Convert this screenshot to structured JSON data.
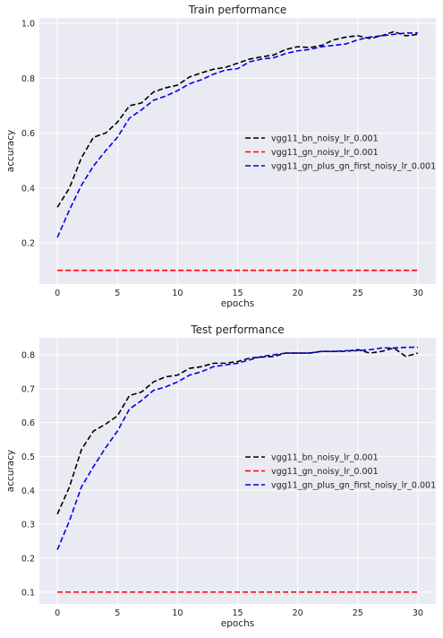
{
  "chart_data": [
    {
      "type": "line",
      "title": "Train performance",
      "xlabel": "epochs",
      "ylabel": "accuracy",
      "xlim": [
        -1.5,
        31.5
      ],
      "ylim": [
        0.05,
        1.02
      ],
      "xticks": [
        0,
        5,
        10,
        15,
        20,
        25,
        30
      ],
      "yticks": [
        0.2,
        0.4,
        0.6,
        0.8,
        1.0
      ],
      "ytick_labels": [
        "0.2",
        "0.4",
        "0.6",
        "0.8",
        "1.0"
      ],
      "grid": true,
      "legend": "center-right",
      "x": [
        0,
        1,
        2,
        3,
        4,
        5,
        6,
        7,
        8,
        9,
        10,
        11,
        12,
        13,
        14,
        15,
        16,
        17,
        18,
        19,
        20,
        21,
        22,
        23,
        24,
        25,
        26,
        27,
        28,
        29,
        30
      ],
      "series": [
        {
          "name": "vgg11_bn_noisy_lr_0.001",
          "color": "#000000",
          "values": [
            0.33,
            0.4,
            0.51,
            0.585,
            0.6,
            0.64,
            0.7,
            0.71,
            0.75,
            0.765,
            0.775,
            0.805,
            0.82,
            0.833,
            0.84,
            0.855,
            0.87,
            0.878,
            0.885,
            0.905,
            0.915,
            0.912,
            0.92,
            0.94,
            0.95,
            0.955,
            0.945,
            0.955,
            0.97,
            0.955,
            0.96
          ]
        },
        {
          "name": "vgg11_gn_noisy_lr_0.001",
          "color": "#ff0000",
          "values": [
            0.1,
            0.1,
            0.1,
            0.1,
            0.1,
            0.1,
            0.1,
            0.1,
            0.1,
            0.1,
            0.1,
            0.1,
            0.1,
            0.1,
            0.1,
            0.1,
            0.1,
            0.1,
            0.1,
            0.1,
            0.1,
            0.1,
            0.1,
            0.1,
            0.1,
            0.1,
            0.1,
            0.1,
            0.1,
            0.1,
            0.1
          ]
        },
        {
          "name": "vgg11_gn_plus_gn_first_noisy_lr_0.001",
          "color": "#0000ee",
          "values": [
            0.22,
            0.32,
            0.41,
            0.48,
            0.535,
            0.585,
            0.655,
            0.685,
            0.72,
            0.735,
            0.755,
            0.78,
            0.795,
            0.815,
            0.83,
            0.835,
            0.86,
            0.87,
            0.875,
            0.89,
            0.9,
            0.905,
            0.915,
            0.92,
            0.925,
            0.94,
            0.95,
            0.955,
            0.96,
            0.965,
            0.965
          ]
        }
      ]
    },
    {
      "type": "line",
      "title": "Test performance",
      "xlabel": "epochs",
      "ylabel": "accuracy",
      "xlim": [
        -1.5,
        31.5
      ],
      "ylim": [
        0.065,
        0.85
      ],
      "xticks": [
        0,
        5,
        10,
        15,
        20,
        25,
        30
      ],
      "yticks": [
        0.1,
        0.2,
        0.3,
        0.4,
        0.5,
        0.6,
        0.7,
        0.8
      ],
      "ytick_labels": [
        "0.1",
        "0.2",
        "0.3",
        "0.4",
        "0.5",
        "0.6",
        "0.7",
        "0.8"
      ],
      "grid": true,
      "legend": "center-right",
      "x": [
        0,
        1,
        2,
        3,
        4,
        5,
        6,
        7,
        8,
        9,
        10,
        11,
        12,
        13,
        14,
        15,
        16,
        17,
        18,
        19,
        20,
        21,
        22,
        23,
        24,
        25,
        26,
        27,
        28,
        29,
        30
      ],
      "series": [
        {
          "name": "vgg11_bn_noisy_lr_0.001",
          "color": "#000000",
          "values": [
            0.33,
            0.41,
            0.52,
            0.575,
            0.595,
            0.62,
            0.68,
            0.69,
            0.72,
            0.735,
            0.74,
            0.76,
            0.765,
            0.775,
            0.775,
            0.78,
            0.79,
            0.793,
            0.795,
            0.805,
            0.805,
            0.805,
            0.81,
            0.81,
            0.81,
            0.815,
            0.805,
            0.81,
            0.82,
            0.795,
            0.805
          ]
        },
        {
          "name": "vgg11_gn_noisy_lr_0.001",
          "color": "#ff0000",
          "values": [
            0.1,
            0.1,
            0.1,
            0.1,
            0.1,
            0.1,
            0.1,
            0.1,
            0.1,
            0.1,
            0.1,
            0.1,
            0.1,
            0.1,
            0.1,
            0.1,
            0.1,
            0.1,
            0.1,
            0.1,
            0.1,
            0.1,
            0.1,
            0.1,
            0.1,
            0.1,
            0.1,
            0.1,
            0.1,
            0.1,
            0.1
          ]
        },
        {
          "name": "vgg11_gn_plus_gn_first_noisy_lr_0.001",
          "color": "#0000ee",
          "values": [
            0.225,
            0.31,
            0.41,
            0.47,
            0.525,
            0.575,
            0.64,
            0.665,
            0.695,
            0.705,
            0.72,
            0.74,
            0.75,
            0.765,
            0.77,
            0.775,
            0.785,
            0.795,
            0.8,
            0.805,
            0.805,
            0.805,
            0.81,
            0.81,
            0.812,
            0.812,
            0.815,
            0.82,
            0.82,
            0.822,
            0.822
          ]
        }
      ]
    }
  ]
}
